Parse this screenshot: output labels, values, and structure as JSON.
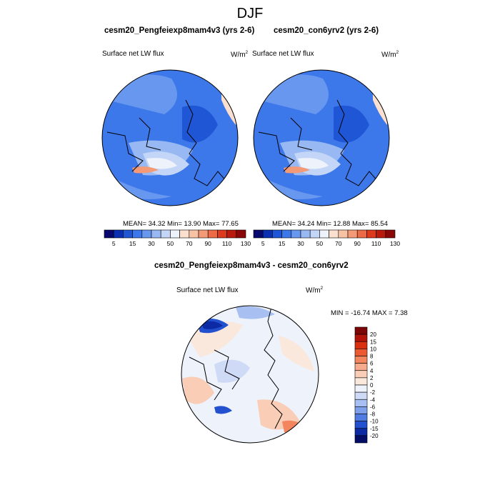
{
  "page_title": "DJF",
  "panels": [
    {
      "title": "cesm20_Pengfeiexp8mam4v3 (yrs 2-6)",
      "variable": "Surface net LW flux",
      "units_base": "W/m",
      "units_sup": "2",
      "stats": "MEAN=  34.32  Min=  13.90  Max=  77.65"
    },
    {
      "title": "cesm20_con6yrv2 (yrs 2-6)",
      "variable": "Surface net LW flux",
      "units_base": "W/m",
      "units_sup": "2",
      "stats": "MEAN=  34.24  Min=  12.88  Max=  85.54"
    },
    {
      "title": "cesm20_Pengfeiexp8mam4v3 - cesm20_con6yrv2",
      "variable": "Surface net LW flux",
      "units_base": "W/m",
      "units_sup": "2",
      "stats": "MIN = -16.74 MAX =   7.38"
    }
  ],
  "chart_data": [
    {
      "type": "heatmap",
      "projection": "north-polar-stereographic",
      "title": "cesm20_Pengfeiexp8mam4v3 (yrs 2-6)",
      "variable": "Surface net LW flux",
      "units": "W/m2",
      "mean": 34.32,
      "min": 13.9,
      "max": 77.65,
      "colorbar_levels": [
        5,
        10,
        15,
        20,
        30,
        40,
        50,
        60,
        70,
        80,
        90,
        100,
        110,
        120,
        130
      ],
      "colorbar_tick_labels": [
        "5",
        "15",
        "30",
        "50",
        "70",
        "90",
        "110",
        "130"
      ],
      "colorbar_colors": [
        "#08086e",
        "#0a2fb0",
        "#1f56d6",
        "#3d78ea",
        "#6897ef",
        "#97b8f3",
        "#c4d6f7",
        "#eef2fb",
        "#fbe0d0",
        "#f8c2a4",
        "#f49a76",
        "#ec6a46",
        "#dc3a1c",
        "#b91a0e",
        "#8a0707"
      ]
    },
    {
      "type": "heatmap",
      "projection": "north-polar-stereographic",
      "title": "cesm20_con6yrv2 (yrs 2-6)",
      "variable": "Surface net LW flux",
      "units": "W/m2",
      "mean": 34.24,
      "min": 12.88,
      "max": 85.54,
      "colorbar_levels": [
        5,
        10,
        15,
        20,
        30,
        40,
        50,
        60,
        70,
        80,
        90,
        100,
        110,
        120,
        130
      ],
      "colorbar_tick_labels": [
        "5",
        "15",
        "30",
        "50",
        "70",
        "90",
        "110",
        "130"
      ],
      "colorbar_colors": [
        "#08086e",
        "#0a2fb0",
        "#1f56d6",
        "#3d78ea",
        "#6897ef",
        "#97b8f3",
        "#c4d6f7",
        "#eef2fb",
        "#fbe0d0",
        "#f8c2a4",
        "#f49a76",
        "#ec6a46",
        "#dc3a1c",
        "#b91a0e",
        "#8a0707"
      ]
    },
    {
      "type": "heatmap",
      "projection": "north-polar-stereographic",
      "title": "cesm20_Pengfeiexp8mam4v3 - cesm20_con6yrv2",
      "variable": "Surface net LW flux",
      "units": "W/m2",
      "min": -16.74,
      "max": 7.38,
      "colorbar_orientation": "vertical",
      "colorbar_levels": [
        20,
        15,
        10,
        8,
        6,
        4,
        2,
        0,
        -2,
        -4,
        -6,
        -8,
        -10,
        -15,
        -20
      ],
      "colorbar_tick_labels": [
        "20",
        "15",
        "10",
        "8",
        "6",
        "4",
        "2",
        "0",
        "-2",
        "-4",
        "-6",
        "-8",
        "-10",
        "-15",
        "-20"
      ],
      "colorbar_colors": [
        "#7d0606",
        "#b31409",
        "#d9300f",
        "#ec5a33",
        "#f3865f",
        "#f6ab8c",
        "#f9cdb6",
        "#fbe8dc",
        "#eef2fb",
        "#cfdbf6",
        "#a8c0f1",
        "#7ea0eb",
        "#4f7be2",
        "#2350cf",
        "#0c2aa3",
        "#040d68"
      ]
    }
  ]
}
